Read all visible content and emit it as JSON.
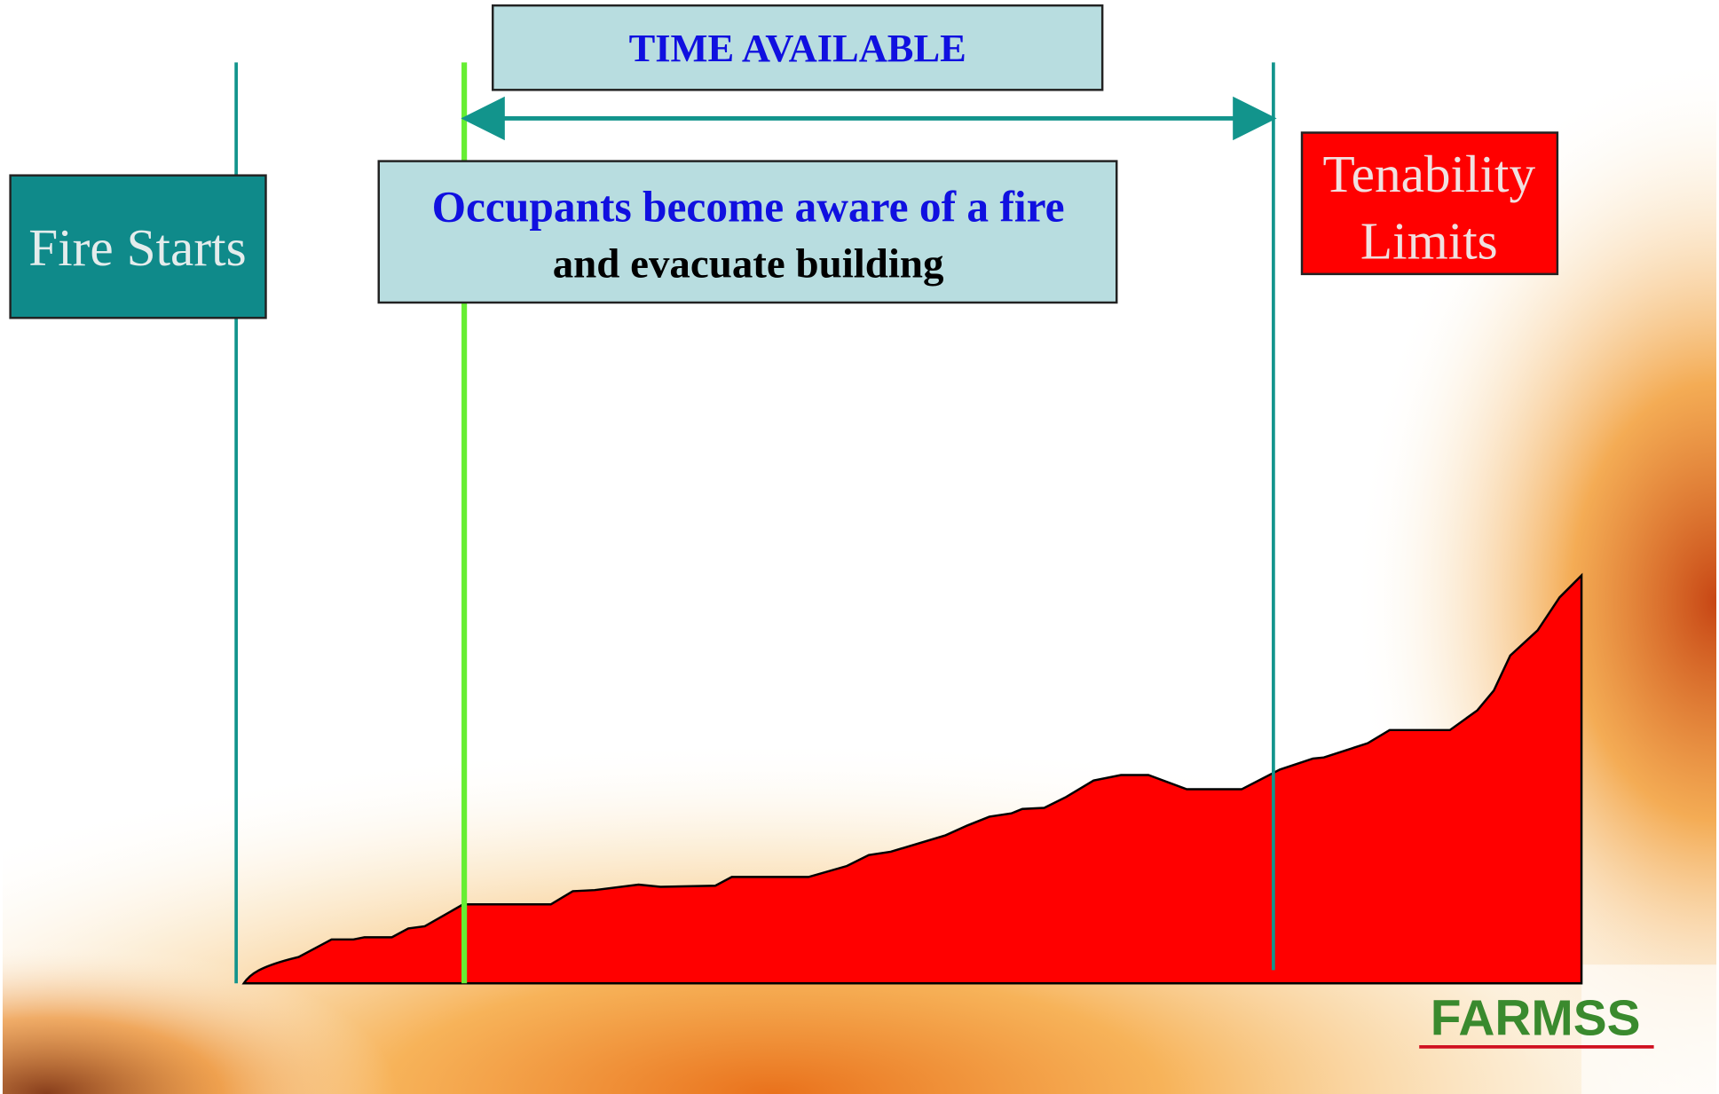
{
  "header": {
    "title": "TIME AVAILABLE"
  },
  "nodes": [
    {
      "label": "Fire Starts"
    },
    {
      "lines": [
        "Occupants become aware of a fire",
        "and evacuate building"
      ]
    },
    {
      "lines": [
        "Tenability",
        "Limits"
      ]
    }
  ],
  "logo": "FARMSS"
}
